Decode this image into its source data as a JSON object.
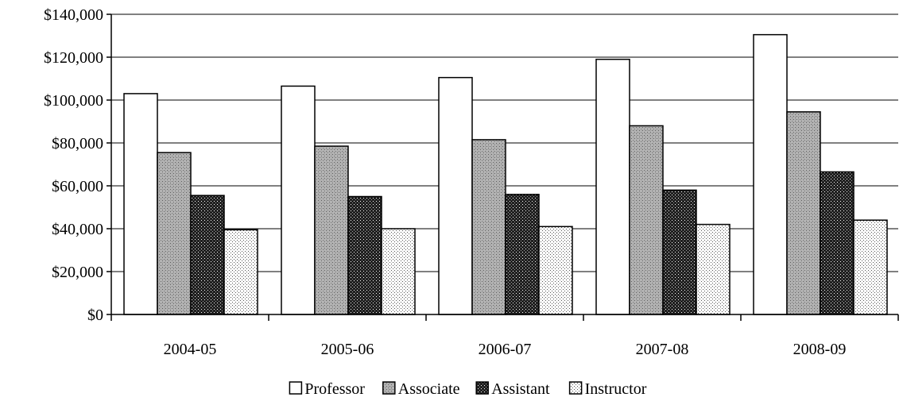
{
  "chart_data": {
    "type": "bar",
    "title": "",
    "xlabel": "",
    "ylabel": "",
    "categories": [
      "2004-05",
      "2005-06",
      "2006-07",
      "2007-08",
      "2008-09"
    ],
    "series": [
      {
        "name": "Professor",
        "pattern": "white",
        "values": [
          103000,
          106500,
          110500,
          119000,
          130500
        ]
      },
      {
        "name": "Associate",
        "pattern": "gray",
        "values": [
          75500,
          78500,
          81500,
          88000,
          94500
        ]
      },
      {
        "name": "Assistant",
        "pattern": "dark",
        "values": [
          55500,
          55000,
          56000,
          58000,
          66500
        ]
      },
      {
        "name": "Instructor",
        "pattern": "dotted",
        "values": [
          39500,
          40000,
          41000,
          42000,
          44000
        ]
      }
    ],
    "ylim": [
      0,
      140000
    ],
    "yticks": [
      0,
      20000,
      40000,
      60000,
      80000,
      100000,
      120000,
      140000
    ],
    "ytick_labels": [
      "$0",
      "$20,000",
      "$40,000",
      "$60,000",
      "$80,000",
      "$100,000",
      "$120,000",
      "$140,000"
    ],
    "grid": true,
    "legend_position": "bottom"
  }
}
